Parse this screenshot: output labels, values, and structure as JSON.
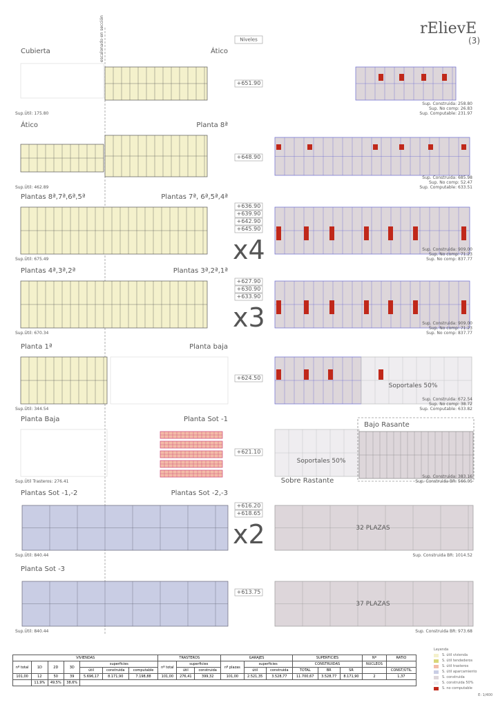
{
  "header": {
    "logo": "rElievE",
    "number": "(3)",
    "levels_heading": "Niveles",
    "section_note": "escalonado en sección"
  },
  "rows": [
    {
      "left_title": "Cubierta",
      "right_title": "Ático",
      "levels": [
        "+651.90"
      ],
      "left_sup": "Sup.Útil: 175.80",
      "right_sup": [
        "Sup. Construida: 258.80",
        "Sup. No comp: 26.83",
        "Sup. Computable: 231.97"
      ]
    },
    {
      "left_title": "Ático",
      "right_title": "Planta 8ª",
      "levels": [
        "+648.90"
      ],
      "left_sup": "Sup.Útil: 462.89",
      "right_sup": [
        "Sup. Construida: 685.98",
        "Sup. No comp: 52.47",
        "Sup. Computable: 633.51"
      ]
    },
    {
      "left_title": "Plantas 8ª,7ª,6ª,5ª",
      "right_title": "Plantas 7ª, 6ª,5ª,4ª",
      "levels": [
        "+636.90",
        "+639.90",
        "+642.90",
        "+645.90"
      ],
      "multiplier": "x4",
      "left_sup": "Sup.Útil: 675.49",
      "right_sup": [
        "Sup. Construida: 909.00",
        "Sup. No comp: 71.23",
        "Sup. No comp: 837.77"
      ]
    },
    {
      "left_title": "Plantas 4ª,3ª,2ª",
      "right_title": "Plantas 3ª,2ª,1ª",
      "levels": [
        "+627.90",
        "+630.90",
        "+633.90"
      ],
      "multiplier": "x3",
      "left_sup": "Sup.Útil: 670.34",
      "right_sup": [
        "Sup. Construida: 909.00",
        "Sup. No comp: 71.23",
        "Sup. No comp: 837.77"
      ]
    },
    {
      "left_title": "Planta 1ª",
      "right_title": "Planta baja",
      "levels": [
        "+624.50"
      ],
      "left_sup": "Sup.Útil: 344.54",
      "notes": [
        "Soportales 50%"
      ],
      "right_sup": [
        "Sup. Construida: 672.54",
        "Sup. No comp: 38.72",
        "Sup. Computable: 633.82"
      ]
    },
    {
      "left_title": "Planta Baja",
      "right_title": "Planta Sot -1",
      "levels": [
        "+621.10"
      ],
      "left_sup": "Sup.Útil Trasteros: 276.41",
      "notes": [
        "Soportales 50%",
        "Bajo Rasante",
        "Sobre Rastante"
      ],
      "right_sup": [
        "Sup. Construida: 383.16",
        "Sup. Construida BR: 566.05"
      ]
    },
    {
      "left_title": "Plantas Sot -1,-2",
      "right_title": "Plantas Sot -2,-3",
      "levels": [
        "+616.20",
        "+618.65"
      ],
      "multiplier": "x2",
      "left_sup": "Sup.Útil: 840.44",
      "notes": [
        "32 PLAZAS"
      ],
      "right_sup": [
        "Sup. Construida BR: 1014.52"
      ]
    },
    {
      "left_title": "Planta Sot -3",
      "levels": [
        "+613.75"
      ],
      "left_sup": "Sup.Útil: 840.44",
      "notes": [
        "37 PLAZAS"
      ],
      "right_sup": [
        "Sup. Construida BR: 973.68"
      ]
    }
  ],
  "table": {
    "groups": [
      "VIVIENDAS",
      "TRASTEROS",
      "GARAJES",
      "SUPERFICIES",
      "Nº",
      "RATIO"
    ],
    "subheads": [
      "nº total",
      "1D",
      "2D",
      "3D",
      "superficies",
      "nº total",
      "superficies",
      "nº plazas",
      "superficies",
      "CONSTRUIDAS",
      "NUCLEOS"
    ],
    "columns": [
      "útil",
      "construida",
      "computable",
      "útil",
      "construida",
      "útil",
      "construida",
      "TOTAL",
      "BR",
      "SR",
      "CONST/ÚTIL"
    ],
    "values": [
      "101,00",
      "12",
      "50",
      "39",
      "5.696,17",
      "8.171,90",
      "7.198,88",
      "101,00",
      "276,41",
      "399,32",
      "101,00",
      "2.521,35",
      "3.528,77",
      "11.700,67",
      "3.528,77",
      "8.171,90",
      "2",
      "1,37"
    ],
    "percentages": [
      "11,9%",
      "49,5%",
      "38,6%"
    ]
  },
  "legend": {
    "title": "Leyenda",
    "items": [
      {
        "label": "S. útil vivienda",
        "color": "#f4f1cc"
      },
      {
        "label": "S. útil tendederos",
        "color": "#d9d77a"
      },
      {
        "label": "S. útil trasteros",
        "color": "#f3bca8"
      },
      {
        "label": "S. útil aparcamiento",
        "color": "#c9cde4"
      },
      {
        "label": "S. construida",
        "color": "#ddd6da"
      },
      {
        "label": "S. construida 50%",
        "color": "#efedf0"
      },
      {
        "label": "S. no computable",
        "color": "#c0281a"
      }
    ],
    "scale": "E: 1/400"
  }
}
